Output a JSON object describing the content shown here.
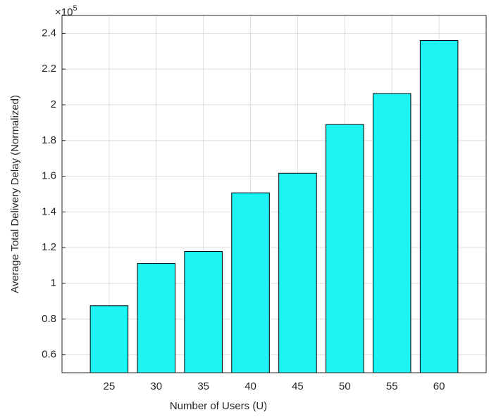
{
  "chart_data": {
    "type": "bar",
    "x_label": "Number of Users (U)",
    "y_label": "Average Total Delivery Delay (Normalized)",
    "y_multiplier": {
      "base": "×10",
      "exponent": "5"
    },
    "x": [
      25,
      30,
      35,
      40,
      45,
      50,
      55,
      60
    ],
    "values": [
      0.875,
      1.112,
      1.179,
      1.507,
      1.617,
      1.89,
      2.063,
      2.36
    ],
    "bar_width": 4,
    "color": "#1cf3f3",
    "xlim": [
      20,
      65
    ],
    "xticks": [
      25,
      30,
      35,
      40,
      45,
      50,
      55,
      60
    ],
    "ylim": [
      0.5,
      2.5
    ],
    "yticks": [
      0.6,
      0.8,
      1,
      1.2,
      1.4,
      1.6,
      1.8,
      2,
      2.2,
      2.4
    ],
    "grid": true
  }
}
